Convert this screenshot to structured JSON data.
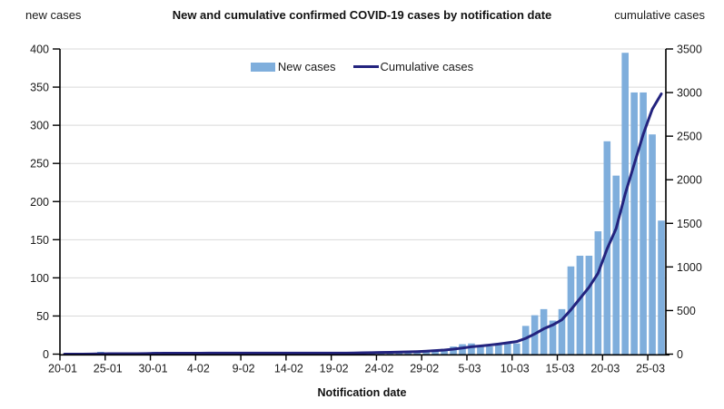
{
  "header": {
    "left_axis_label": "new cases",
    "title": "New and cumulative confirmed COVID-19 cases by notification date",
    "right_axis_label": "cumulative cases"
  },
  "legend": {
    "new_cases_label": "New cases",
    "cumulative_label": "Cumulative cases"
  },
  "chart_data": {
    "type": "bar",
    "title": "New and cumulative confirmed COVID-19 cases by notification date",
    "xlabel": "Notification date",
    "left_axis": {
      "label": "new cases",
      "min": 0,
      "max": 400,
      "step": 50,
      "ticks": [
        "0",
        "50",
        "100",
        "150",
        "200",
        "250",
        "300",
        "350",
        "400"
      ]
    },
    "right_axis": {
      "label": "cumulative cases",
      "min": 0,
      "max": 3500,
      "step": 500,
      "ticks": [
        "0",
        "500",
        "1000",
        "1500",
        "2000",
        "2500",
        "3000",
        "3500"
      ]
    },
    "grid": true,
    "legend_position": "top-center",
    "colors": {
      "bar": "#7FAEDC",
      "line": "#23237E",
      "grid": "#D9D9D9",
      "axis": "#000000"
    },
    "x_tick_labels": [
      "20-01",
      "25-01",
      "30-01",
      "4-02",
      "9-02",
      "14-02",
      "19-02",
      "24-02",
      "29-02",
      "5-03",
      "10-03",
      "15-03",
      "20-03",
      "25-03"
    ],
    "x_tick_interval": 5,
    "categories": [
      "20-01",
      "21-01",
      "22-01",
      "23-01",
      "24-01",
      "25-01",
      "26-01",
      "27-01",
      "28-01",
      "29-01",
      "30-01",
      "31-01",
      "1-02",
      "2-02",
      "3-02",
      "4-02",
      "5-02",
      "6-02",
      "7-02",
      "8-02",
      "9-02",
      "10-02",
      "11-02",
      "12-02",
      "13-02",
      "14-02",
      "15-02",
      "16-02",
      "17-02",
      "18-02",
      "19-02",
      "20-02",
      "21-02",
      "22-02",
      "23-02",
      "24-02",
      "25-02",
      "26-02",
      "27-02",
      "28-02",
      "29-02",
      "1-03",
      "2-03",
      "3-03",
      "4-03",
      "5-03",
      "6-03",
      "7-03",
      "8-03",
      "9-03",
      "10-03",
      "11-03",
      "12-03",
      "13-03",
      "14-03",
      "15-03",
      "16-03",
      "17-03",
      "18-03",
      "19-03",
      "20-03",
      "21-03",
      "22-03",
      "23-03",
      "24-03",
      "25-03",
      "26-03"
    ],
    "series": [
      {
        "name": "New cases",
        "type": "bar",
        "axis": "left",
        "values": [
          0,
          0,
          0,
          1,
          3,
          1,
          0,
          0,
          0,
          1,
          3,
          1,
          0,
          1,
          0,
          0,
          1,
          0,
          0,
          0,
          0,
          0,
          0,
          0,
          0,
          0,
          0,
          0,
          0,
          0,
          0,
          0,
          1,
          3,
          1,
          2,
          2,
          2,
          3,
          3,
          5,
          6,
          7,
          10,
          13,
          14,
          10,
          10,
          12,
          14,
          14,
          37,
          51,
          59,
          44,
          59,
          115,
          129,
          129,
          161,
          279,
          234,
          395,
          343,
          343,
          288,
          175
        ]
      },
      {
        "name": "Cumulative cases",
        "type": "line",
        "axis": "right",
        "values": [
          0,
          0,
          0,
          1,
          4,
          5,
          5,
          5,
          5,
          6,
          9,
          10,
          10,
          11,
          11,
          11,
          12,
          12,
          12,
          12,
          12,
          12,
          12,
          12,
          12,
          12,
          12,
          12,
          12,
          12,
          12,
          12,
          13,
          16,
          17,
          19,
          21,
          23,
          26,
          29,
          34,
          40,
          47,
          57,
          70,
          84,
          94,
          104,
          116,
          130,
          144,
          181,
          232,
          291,
          335,
          394,
          509,
          638,
          767,
          928,
          1207,
          1441,
          1836,
          2179,
          2522,
          2810,
          2985
        ]
      }
    ]
  }
}
